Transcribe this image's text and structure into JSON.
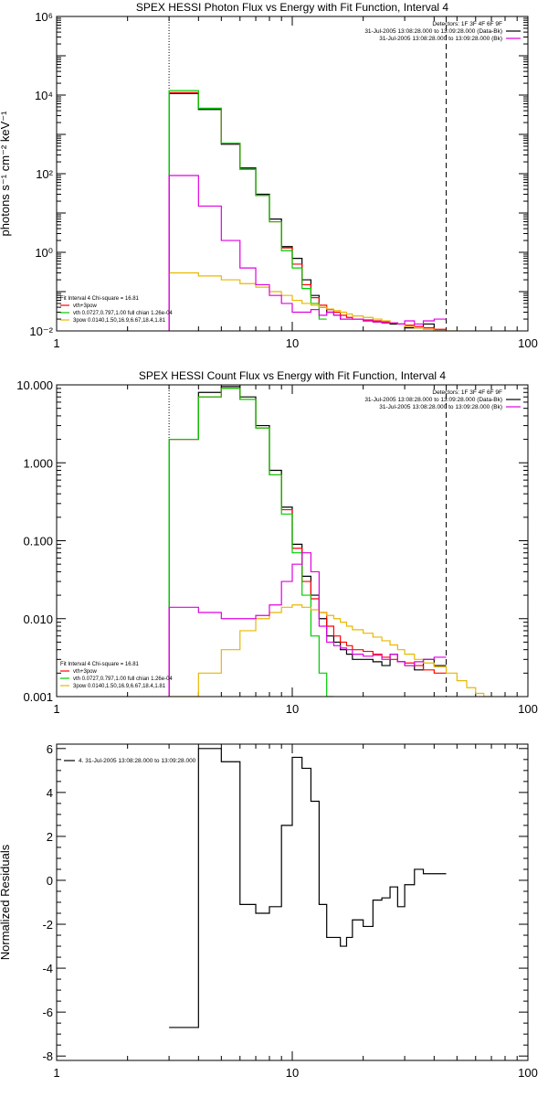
{
  "figure": {
    "panels": [
      {
        "title": "SPEX HESSI Photon Flux vs Energy with Fit Function, Interval 4",
        "ylabel": "photons s⁻¹ cm⁻² keV⁻¹",
        "x_ticks": [
          "1",
          "10",
          "100"
        ],
        "y_ticks": [
          {
            "value": 0.01,
            "label": "10⁻²"
          },
          {
            "value": 1,
            "label": "10⁰"
          },
          {
            "value": 100,
            "label": "10²"
          },
          {
            "value": 10000,
            "label": "10⁴"
          },
          {
            "value": 1000000,
            "label": "10⁶"
          }
        ],
        "top_legend": [
          "Detectors: 1F 3F 4F 6F 9F",
          "31-Jul-2005 13:08:28.000 to 13:09:28.000 (Data-Bk)",
          "31-Jul-2005 13:08:28.000 to 13:09:28.000 (Bk)"
        ],
        "fit_legend": [
          "Fit Interval  4     Chi-square = 16.81",
          "vth+3pow",
          "vth 0.0727,0.797,1.00   full chian 1.26e-04",
          "3pow 0.0140,1.50,16.9,6.67,18.4,1.81"
        ]
      },
      {
        "title": "SPEX HESSI Count Flux vs Energy with Fit Function, Interval 4",
        "ylabel": "",
        "x_ticks": [
          "1",
          "10",
          "100"
        ],
        "y_ticks": [
          {
            "value": 0.001,
            "label": "0.001"
          },
          {
            "value": 0.01,
            "label": "0.010"
          },
          {
            "value": 0.1,
            "label": "0.100"
          },
          {
            "value": 1,
            "label": "1.000"
          },
          {
            "value": 10,
            "label": "10.000"
          }
        ],
        "top_legend": [
          "Detectors: 1F 3F 4F 6F 9F",
          "31-Jul-2005 13:08:28.000 to 13:09:28.000 (Data-Bk)",
          "31-Jul-2005 13:08:28.000 to 13:09:28.000 (Bk)"
        ],
        "fit_legend": [
          "Fit Interval  4     Chi-square = 16.81",
          "vth+3pow",
          "vth 0.0727,0.797,1.00   full chian 1.26e-04",
          "3pow 0.0140,1.50,16.9,6.67,18.4,1.81"
        ]
      },
      {
        "title": "",
        "ylabel": "Normalized Residuals",
        "x_ticks": [
          "1",
          "10",
          "100"
        ],
        "y_ticks": [
          {
            "value": -8,
            "label": "-8"
          },
          {
            "value": -6,
            "label": "-6"
          },
          {
            "value": -4,
            "label": "-4"
          },
          {
            "value": -2,
            "label": "-2"
          },
          {
            "value": 0,
            "label": "0"
          },
          {
            "value": 2,
            "label": "2"
          },
          {
            "value": 4,
            "label": "4"
          },
          {
            "value": 6,
            "label": "6"
          }
        ],
        "top_legend": [
          "4. 31-Jul-2005 13:08:28.000 to 13:09:28.000"
        ],
        "fit_legend": []
      }
    ],
    "colors": {
      "data": "#000000",
      "total_fit": "#ff0000",
      "vth": "#00cc00",
      "pow": "#e8b800",
      "background": "#e000e0",
      "axes": "#000000"
    }
  },
  "chart_data": [
    {
      "type": "line",
      "title": "SPEX HESSI Photon Flux vs Energy with Fit Function, Interval 4",
      "ylabel": "photons s⁻¹ cm⁻² keV⁻¹",
      "xlabel": "",
      "x_scale": "log",
      "y_scale": "log",
      "xlim": [
        1,
        100
      ],
      "ylim": [
        0.01,
        1000000
      ],
      "fit_range": [
        3,
        45
      ],
      "bin_edges": [
        3,
        4,
        5,
        6,
        7,
        8,
        9,
        10,
        11,
        12,
        13,
        14,
        15,
        16,
        17,
        18,
        20,
        22,
        24,
        26,
        28,
        30,
        33,
        36,
        40,
        45,
        50
      ],
      "series": [
        {
          "name": "Data-Bk",
          "values": [
            11000,
            4300,
            560,
            140,
            30,
            7,
            1.4,
            0.7,
            0.2,
            0.08,
            0.04,
            0.03,
            0.025,
            0.02,
            0.02,
            0.02,
            0.018,
            0.017,
            0.016,
            0.015,
            0.015,
            0.012,
            0.012,
            0.015,
            0.01,
            null
          ]
        },
        {
          "name": "vth+3pow",
          "values": [
            11500,
            4600,
            600,
            130,
            28,
            6,
            1.3,
            0.5,
            0.15,
            0.07,
            0.045,
            0.035,
            0.03,
            0.025,
            0.022,
            0.02,
            0.019,
            0.018,
            0.017,
            0.016,
            0.015,
            0.014,
            0.013,
            0.012,
            0.011,
            null
          ]
        },
        {
          "name": "vth",
          "values": [
            13000,
            4600,
            600,
            130,
            28,
            6,
            1.1,
            0.4,
            0.12,
            0.05,
            0.02,
            null,
            null,
            null,
            null,
            null,
            null,
            null,
            null,
            null,
            null,
            null,
            null,
            null,
            null,
            null
          ]
        },
        {
          "name": "3pow",
          "values": [
            0.3,
            0.25,
            0.2,
            0.16,
            0.13,
            0.1,
            0.08,
            0.06,
            0.05,
            0.045,
            0.04,
            0.036,
            0.033,
            0.03,
            0.027,
            0.024,
            0.022,
            0.02,
            0.018,
            0.016,
            0.015,
            0.013,
            0.012,
            0.011,
            0.01,
            0.009
          ]
        },
        {
          "name": "Bk",
          "values": [
            90,
            15,
            2,
            0.4,
            0.15,
            0.08,
            0.05,
            0.03,
            0.03,
            0.035,
            0.025,
            0.03,
            0.025,
            0.02,
            0.02,
            0.02,
            0.018,
            0.017,
            0.016,
            0.016,
            0.015,
            0.018,
            0.015,
            0.018,
            0.02,
            null
          ]
        }
      ],
      "vlines": [
        3,
        45
      ]
    },
    {
      "type": "line",
      "title": "SPEX HESSI Count Flux vs Energy with Fit Function, Interval 4",
      "ylabel": "",
      "xlabel": "",
      "x_scale": "log",
      "y_scale": "log",
      "xlim": [
        1,
        100
      ],
      "ylim": [
        0.001,
        10
      ],
      "fit_range": [
        3,
        45
      ],
      "bin_edges": [
        3,
        4,
        5,
        6,
        7,
        8,
        9,
        10,
        11,
        12,
        13,
        14,
        15,
        16,
        17,
        18,
        20,
        22,
        24,
        26,
        28,
        30,
        33,
        36,
        40,
        45,
        50,
        55,
        60,
        65,
        70
      ],
      "series": [
        {
          "name": "Data-Bk",
          "values": [
            2,
            8,
            9.5,
            7,
            3,
            0.8,
            0.27,
            0.09,
            0.035,
            0.02,
            0.01,
            0.006,
            0.005,
            0.004,
            0.0035,
            0.003,
            0.003,
            0.0028,
            0.0025,
            0.0035,
            0.0028,
            0.0025,
            0.0022,
            0.003,
            0.0025,
            null,
            null,
            null,
            null,
            null
          ]
        },
        {
          "name": "vth+3pow",
          "values": [
            2,
            7,
            9,
            6.5,
            2.8,
            0.7,
            0.25,
            0.08,
            0.03,
            0.018,
            0.012,
            0.008,
            0.006,
            0.005,
            0.0045,
            0.004,
            0.0038,
            0.0035,
            0.0032,
            0.003,
            0.0028,
            0.0027,
            0.0025,
            0.0022,
            0.002,
            null,
            null,
            null,
            null,
            null
          ]
        },
        {
          "name": "vth",
          "values": [
            2,
            7,
            9,
            6.5,
            2.8,
            0.7,
            0.22,
            0.07,
            0.02,
            0.006,
            0.002,
            0.0008,
            null,
            null,
            null,
            null,
            null,
            null,
            null,
            null,
            null,
            null,
            null,
            null,
            null,
            null,
            null,
            null,
            null,
            null
          ]
        },
        {
          "name": "3pow",
          "values": [
            0.0008,
            0.002,
            0.004,
            0.007,
            0.01,
            0.012,
            0.014,
            0.015,
            0.014,
            0.013,
            0.012,
            0.011,
            0.01,
            0.009,
            0.008,
            0.0072,
            0.0065,
            0.0058,
            0.0052,
            0.0046,
            0.004,
            0.0035,
            0.003,
            0.0027,
            0.0024,
            0.002,
            0.0016,
            0.0013,
            0.0011,
            0.001
          ]
        },
        {
          "name": "Bk",
          "values": [
            0.014,
            0.012,
            0.01,
            0.01,
            0.011,
            0.015,
            0.03,
            0.05,
            0.07,
            0.04,
            0.008,
            0.005,
            0.0045,
            0.0042,
            0.004,
            0.0035,
            0.0033,
            0.0034,
            0.003,
            0.0035,
            0.0028,
            0.0025,
            0.0028,
            0.003,
            0.0032,
            null,
            null,
            null,
            null,
            null
          ]
        }
      ],
      "vlines": [
        3,
        45
      ]
    },
    {
      "type": "line",
      "title": "",
      "ylabel": "Normalized Residuals",
      "xlabel": "",
      "x_scale": "log",
      "y_scale": "linear",
      "xlim": [
        1,
        100
      ],
      "ylim": [
        -8.2,
        6.2
      ],
      "bin_edges": [
        3,
        4,
        5,
        6,
        7,
        8,
        9,
        10,
        11,
        12,
        13,
        14,
        15,
        16,
        17,
        18,
        20,
        22,
        24,
        26,
        28,
        30,
        33,
        36,
        40,
        45
      ],
      "series": [
        {
          "name": "4. 31-Jul-2005 13:08:28.000 to 13:09:28.000",
          "values": [
            -6.7,
            6.0,
            5.4,
            -1.1,
            -1.5,
            -1.2,
            2.5,
            5.6,
            5.1,
            3.6,
            -1.1,
            -2.6,
            -2.6,
            -3.0,
            -2.6,
            -1.8,
            -2.1,
            -0.9,
            -0.8,
            -0.3,
            -1.2,
            -0.2,
            0.5,
            0.3,
            0.3
          ]
        }
      ]
    }
  ]
}
